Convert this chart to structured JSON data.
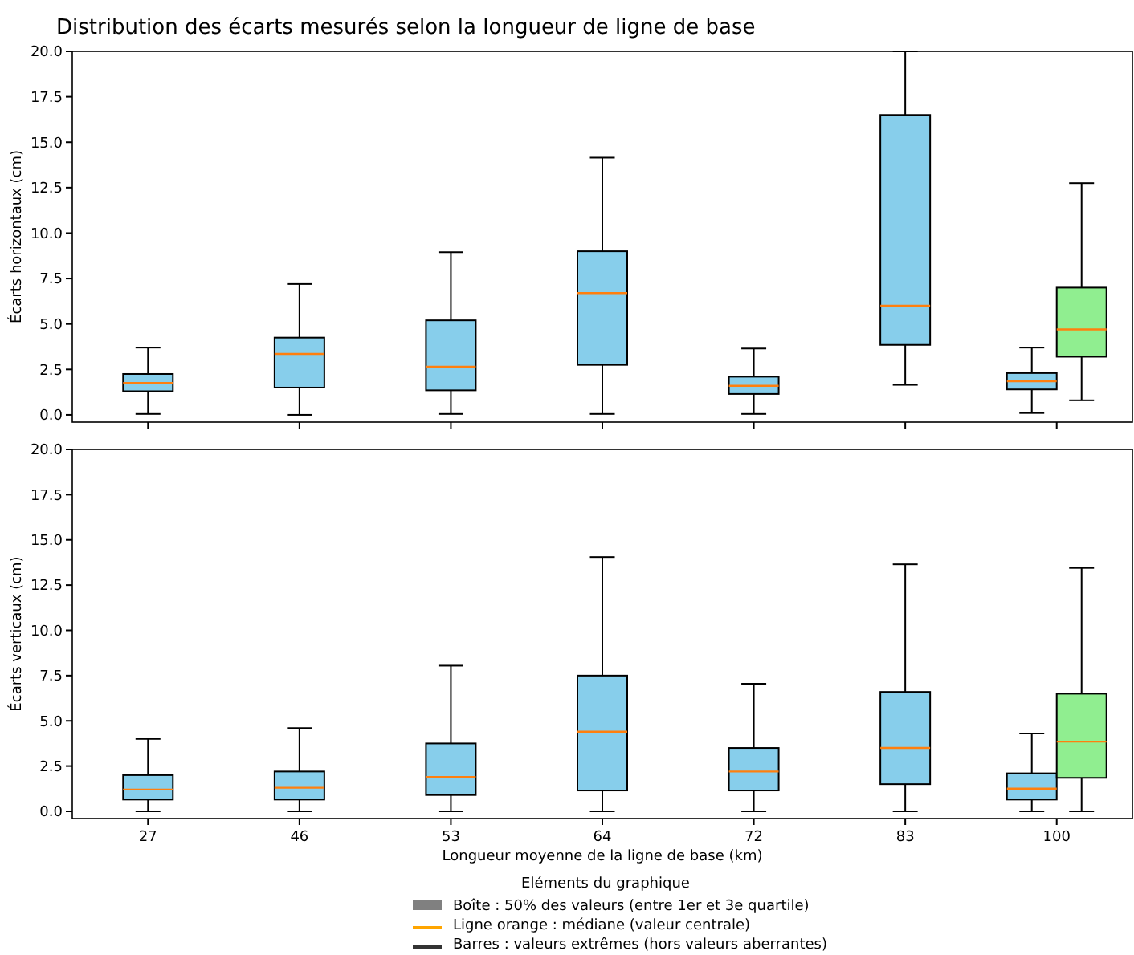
{
  "chart_data": [
    {
      "type": "box",
      "title": "Distribution des écarts mesurés selon la longueur de ligne de base",
      "ylabel": "Écarts horizontaux (cm)",
      "categories": [
        "27",
        "46",
        "53",
        "64",
        "72",
        "83",
        "100"
      ],
      "ylim": [
        -0.4,
        20
      ],
      "yticks": [
        {
          "value": 0,
          "label": "0.0"
        },
        {
          "value": 2.5,
          "label": "2.5"
        },
        {
          "value": 5,
          "label": "5.0"
        },
        {
          "value": 7.5,
          "label": "7.5"
        },
        {
          "value": 10,
          "label": "10.0"
        },
        {
          "value": 12.5,
          "label": "12.5"
        },
        {
          "value": 15,
          "label": "15.0"
        },
        {
          "value": 17.5,
          "label": "17.5"
        },
        {
          "value": 20,
          "label": "20.0"
        }
      ],
      "tick_labels": "y",
      "grid": false,
      "series": [
        {
          "color": "#87ceeb",
          "boxes": [
            {
              "low": 0.05,
              "q1": 1.3,
              "median": 1.75,
              "q3": 2.25,
              "high": 3.7
            },
            {
              "low": 0,
              "q1": 1.5,
              "median": 3.35,
              "q3": 4.25,
              "high": 7.2
            },
            {
              "low": 0.05,
              "q1": 1.35,
              "median": 2.65,
              "q3": 5.2,
              "high": 8.95
            },
            {
              "low": 0.05,
              "q1": 2.75,
              "median": 6.7,
              "q3": 9.0,
              "high": 14.15
            },
            {
              "low": 0.05,
              "q1": 1.15,
              "median": 1.6,
              "q3": 2.1,
              "high": 3.65
            },
            {
              "low": 1.65,
              "q1": 3.85,
              "median": 6.0,
              "q3": 16.5,
              "high": 20.0
            },
            {
              "low": 0.1,
              "q1": 1.4,
              "median": 1.85,
              "q3": 2.3,
              "high": 3.7
            }
          ]
        },
        {
          "color": "#90ee90",
          "boxes": [
            null,
            null,
            null,
            null,
            null,
            null,
            {
              "low": 0.8,
              "q1": 3.2,
              "median": 4.7,
              "q3": 7.0,
              "high": 12.75
            }
          ]
        }
      ]
    },
    {
      "type": "box",
      "ylabel": "Écarts verticaux (cm)",
      "xlabel": "Longueur moyenne de la ligne de base (km)",
      "categories": [
        "27",
        "46",
        "53",
        "64",
        "72",
        "83",
        "100"
      ],
      "ylim": [
        -0.4,
        20
      ],
      "yticks": [
        {
          "value": 0,
          "label": "0.0"
        },
        {
          "value": 2.5,
          "label": "2.5"
        },
        {
          "value": 5,
          "label": "5.0"
        },
        {
          "value": 7.5,
          "label": "7.5"
        },
        {
          "value": 10,
          "label": "10.0"
        },
        {
          "value": 12.5,
          "label": "12.5"
        },
        {
          "value": 15,
          "label": "15.0"
        },
        {
          "value": 17.5,
          "label": "17.5"
        },
        {
          "value": 20,
          "label": "20.0"
        }
      ],
      "grid": false,
      "annotations": [
        "Eléments du graphique",
        "Boîte : 50% des valeurs (entre 1er et 3e quartile)",
        "Ligne orange : médiane (valeur centrale)",
        "Barres : valeurs extrêmes (hors valeurs aberrantes)"
      ],
      "series": [
        {
          "color": "#87ceeb",
          "boxes": [
            {
              "low": 0,
              "q1": 0.65,
              "median": 1.2,
              "q3": 2.0,
              "high": 4.0
            },
            {
              "low": 0,
              "q1": 0.65,
              "median": 1.3,
              "q3": 2.2,
              "high": 4.6
            },
            {
              "low": 0,
              "q1": 0.9,
              "median": 1.9,
              "q3": 3.75,
              "high": 8.05
            },
            {
              "low": 0,
              "q1": 1.15,
              "median": 4.4,
              "q3": 7.5,
              "high": 14.05
            },
            {
              "low": 0,
              "q1": 1.15,
              "median": 2.2,
              "q3": 3.5,
              "high": 7.05
            },
            {
              "low": 0,
              "q1": 1.5,
              "median": 3.5,
              "q3": 6.6,
              "high": 13.65
            },
            {
              "low": 0,
              "q1": 0.65,
              "median": 1.25,
              "q3": 2.1,
              "high": 4.3
            }
          ]
        },
        {
          "color": "#90ee90",
          "boxes": [
            null,
            null,
            null,
            null,
            null,
            null,
            {
              "low": 0,
              "q1": 1.85,
              "median": 3.85,
              "q3": 6.5,
              "high": 13.45
            }
          ]
        }
      ]
    }
  ]
}
